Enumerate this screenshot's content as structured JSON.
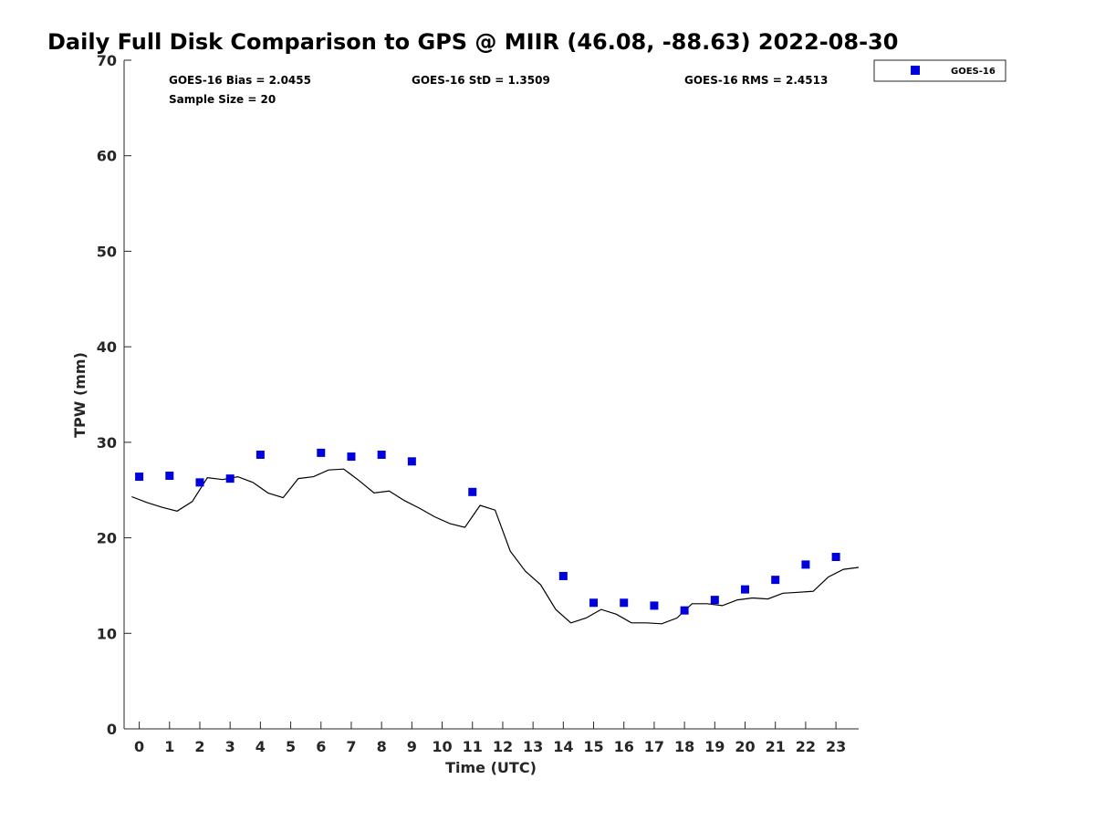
{
  "chart_data": {
    "type": "scatter",
    "title": "Daily Full Disk Comparison to GPS @ MIIR (46.08, -88.63) 2022-08-30",
    "xlabel": "Time (UTC)",
    "ylabel": "TPW (mm)",
    "xlim": [
      -0.5,
      23.75
    ],
    "ylim": [
      0,
      70
    ],
    "xticks": [
      0,
      1,
      2,
      3,
      4,
      5,
      6,
      7,
      8,
      9,
      10,
      11,
      12,
      13,
      14,
      15,
      16,
      17,
      18,
      19,
      20,
      21,
      22,
      23
    ],
    "yticks": [
      0,
      10,
      20,
      30,
      40,
      50,
      60,
      70
    ],
    "grid": false,
    "legend_position": "top-right",
    "stats": {
      "bias": "GOES-16 Bias = 2.0455",
      "std": "GOES-16 StD = 1.3509",
      "rms": "GOES-16 RMS = 2.4513",
      "sample": "Sample Size = 20"
    },
    "series": [
      {
        "name": "GOES-16",
        "kind": "scatter",
        "color": "#0000dd",
        "marker": "square",
        "x": [
          0,
          1,
          2,
          3,
          4,
          6,
          7,
          8,
          9,
          11,
          14,
          15,
          16,
          17,
          18,
          19,
          20,
          21,
          22,
          23
        ],
        "y": [
          26.4,
          26.5,
          25.8,
          26.2,
          28.7,
          28.9,
          28.5,
          28.7,
          28.0,
          24.8,
          16.0,
          13.2,
          13.2,
          12.9,
          12.4,
          13.5,
          14.6,
          15.6,
          17.2,
          18.0
        ]
      },
      {
        "kind": "line",
        "color": "#000000",
        "x": [
          -0.25,
          0.25,
          0.75,
          1.25,
          1.75,
          2.25,
          2.75,
          3.25,
          3.75,
          4.25,
          4.75,
          5.25,
          5.75,
          6.25,
          6.75,
          7.25,
          7.75,
          8.25,
          8.75,
          9.25,
          9.75,
          10.25,
          10.75,
          11.25,
          11.75,
          12.25,
          12.75,
          13.25,
          13.75,
          14.25,
          14.75,
          15.25,
          15.75,
          16.25,
          16.75,
          17.25,
          17.75,
          18.25,
          18.75,
          19.25,
          19.75,
          20.25,
          20.75,
          21.25,
          21.75,
          22.25,
          22.75,
          23.25,
          23.75
        ],
        "y": [
          24.3,
          23.7,
          23.2,
          22.8,
          23.8,
          26.3,
          26.1,
          26.4,
          25.8,
          24.7,
          24.2,
          26.2,
          26.4,
          27.1,
          27.2,
          26.0,
          24.7,
          24.9,
          23.9,
          23.1,
          22.2,
          21.5,
          21.1,
          23.4,
          22.9,
          18.6,
          16.5,
          15.1,
          12.5,
          11.1,
          11.6,
          12.5,
          12.0,
          11.1,
          11.1,
          11.0,
          11.6,
          13.1,
          13.1,
          12.9,
          13.5,
          13.7,
          13.6,
          14.2,
          14.3,
          14.4,
          15.9,
          16.7,
          16.9
        ]
      }
    ]
  }
}
